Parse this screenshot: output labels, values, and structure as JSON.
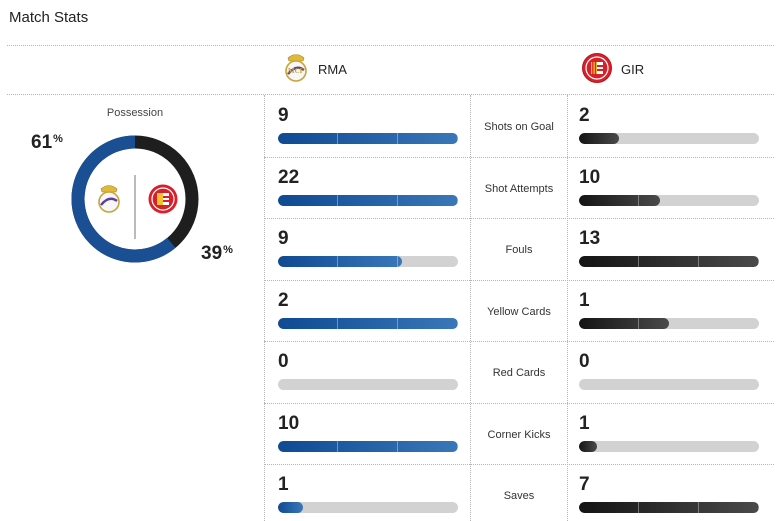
{
  "page": {
    "title": "Match Stats"
  },
  "teams": {
    "home": {
      "abbr": "RMA",
      "crest": "real-madrid-crest-icon",
      "color": "#1a4f93"
    },
    "away": {
      "abbr": "GIR",
      "crest": "girona-crest-icon",
      "color": "#1e1e1e"
    }
  },
  "possession": {
    "label": "Possession",
    "home_pct": "61",
    "away_pct": "39",
    "home_fraction": 0.61,
    "pct_symbol": "%"
  },
  "stats": [
    {
      "label": "Shots on Goal",
      "home": "9",
      "away": "2",
      "home_fill": 1.0,
      "away_fill": 0.22
    },
    {
      "label": "Shot Attempts",
      "home": "22",
      "away": "10",
      "home_fill": 1.0,
      "away_fill": 0.45
    },
    {
      "label": "Fouls",
      "home": "9",
      "away": "13",
      "home_fill": 0.69,
      "away_fill": 1.0
    },
    {
      "label": "Yellow Cards",
      "home": "2",
      "away": "1",
      "home_fill": 1.0,
      "away_fill": 0.5
    },
    {
      "label": "Red Cards",
      "home": "0",
      "away": "0",
      "home_fill": 0.0,
      "away_fill": 0.0
    },
    {
      "label": "Corner Kicks",
      "home": "10",
      "away": "1",
      "home_fill": 1.0,
      "away_fill": 0.1
    },
    {
      "label": "Saves",
      "home": "1",
      "away": "7",
      "home_fill": 0.14,
      "away_fill": 1.0
    }
  ],
  "colors": {
    "track": "#d2d2d2",
    "divider": "#b5b5b5"
  }
}
